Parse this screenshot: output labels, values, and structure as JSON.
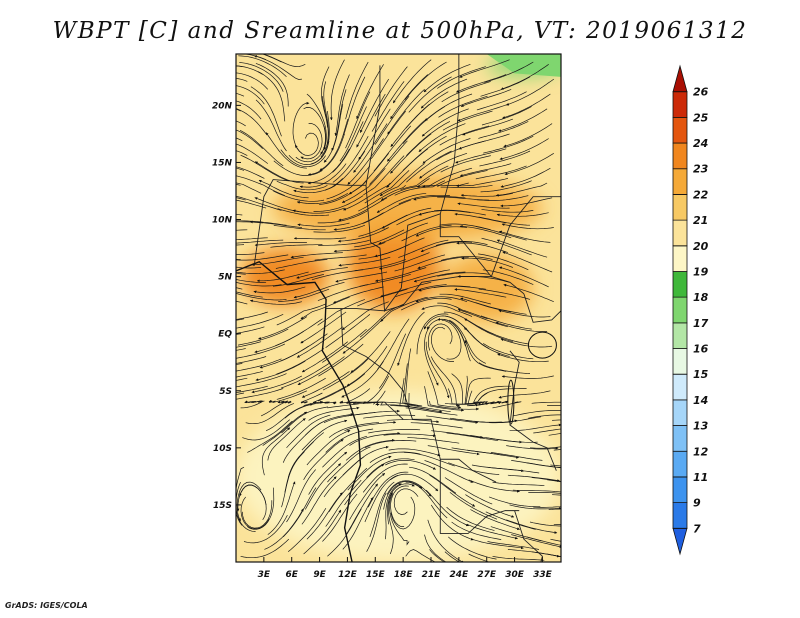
{
  "title": "WBPT [C] and Sreamline at 500hPa, VT: 2019061312",
  "credit": "GrADS: IGES/COLA",
  "chart_data": {
    "type": "heatmap",
    "title": "WBPT [C] and Sreamline at 500hPa, VT: 2019061312",
    "variable": "WBPT",
    "units": "C",
    "level": "500hPa",
    "valid_time": "2019061312",
    "overlay": "streamlines",
    "lon_range": [
      0,
      35
    ],
    "lat_range": [
      -20,
      24.5
    ],
    "x_ticks": [
      {
        "value": 3,
        "label": "3E"
      },
      {
        "value": 6,
        "label": "6E"
      },
      {
        "value": 9,
        "label": "9E"
      },
      {
        "value": 12,
        "label": "12E"
      },
      {
        "value": 15,
        "label": "15E"
      },
      {
        "value": 18,
        "label": "18E"
      },
      {
        "value": 21,
        "label": "21E"
      },
      {
        "value": 24,
        "label": "24E"
      },
      {
        "value": 27,
        "label": "27E"
      },
      {
        "value": 30,
        "label": "30E"
      },
      {
        "value": 33,
        "label": "33E"
      }
    ],
    "y_ticks": [
      {
        "value": 20,
        "label": "20N"
      },
      {
        "value": 15,
        "label": "15N"
      },
      {
        "value": 10,
        "label": "10N"
      },
      {
        "value": 5,
        "label": "5N"
      },
      {
        "value": 0,
        "label": "EQ"
      },
      {
        "value": -5,
        "label": "5S"
      },
      {
        "value": -10,
        "label": "10S"
      },
      {
        "value": -15,
        "label": "15S"
      }
    ],
    "colorbar": {
      "levels": [
        "7",
        "9",
        "11",
        "12",
        "13",
        "14",
        "15",
        "16",
        "17",
        "18",
        "19",
        "20",
        "21",
        "22",
        "23",
        "24",
        "25",
        "26"
      ],
      "colors": [
        "#1f5fe0",
        "#2a7ae8",
        "#3d93ee",
        "#5aaaf3",
        "#7fc1f6",
        "#a6d6f9",
        "#cfeafb",
        "#e8f8e4",
        "#b3e6a6",
        "#7fd66f",
        "#3fb83a",
        "#fdf6c6",
        "#fbe39a",
        "#f7c964",
        "#f4a938",
        "#f0861e",
        "#e4560f",
        "#cc2a08",
        "#a90f03"
      ]
    },
    "regions": [
      {
        "name": "warm-core-west",
        "value": 23,
        "lon": [
          0.5,
          10
        ],
        "lat": [
          2.5,
          7.5
        ]
      },
      {
        "name": "warm-core-central",
        "value": 23,
        "lon": [
          12,
          22
        ],
        "lat": [
          2,
          10
        ]
      },
      {
        "name": "warm-band-east",
        "value": 22.5,
        "lon": [
          22,
          32
        ],
        "lat": [
          1,
          7
        ]
      },
      {
        "name": "sahel-band",
        "value": 22,
        "lon": [
          4,
          33
        ],
        "lat": [
          8,
          14
        ]
      },
      {
        "name": "north-green",
        "value": 17,
        "lon": [
          27,
          35
        ],
        "lat": [
          22.5,
          24.5
        ]
      },
      {
        "name": "south-cool",
        "value": 19,
        "lon": [
          0,
          35
        ],
        "lat": [
          -20,
          -5
        ]
      }
    ]
  }
}
